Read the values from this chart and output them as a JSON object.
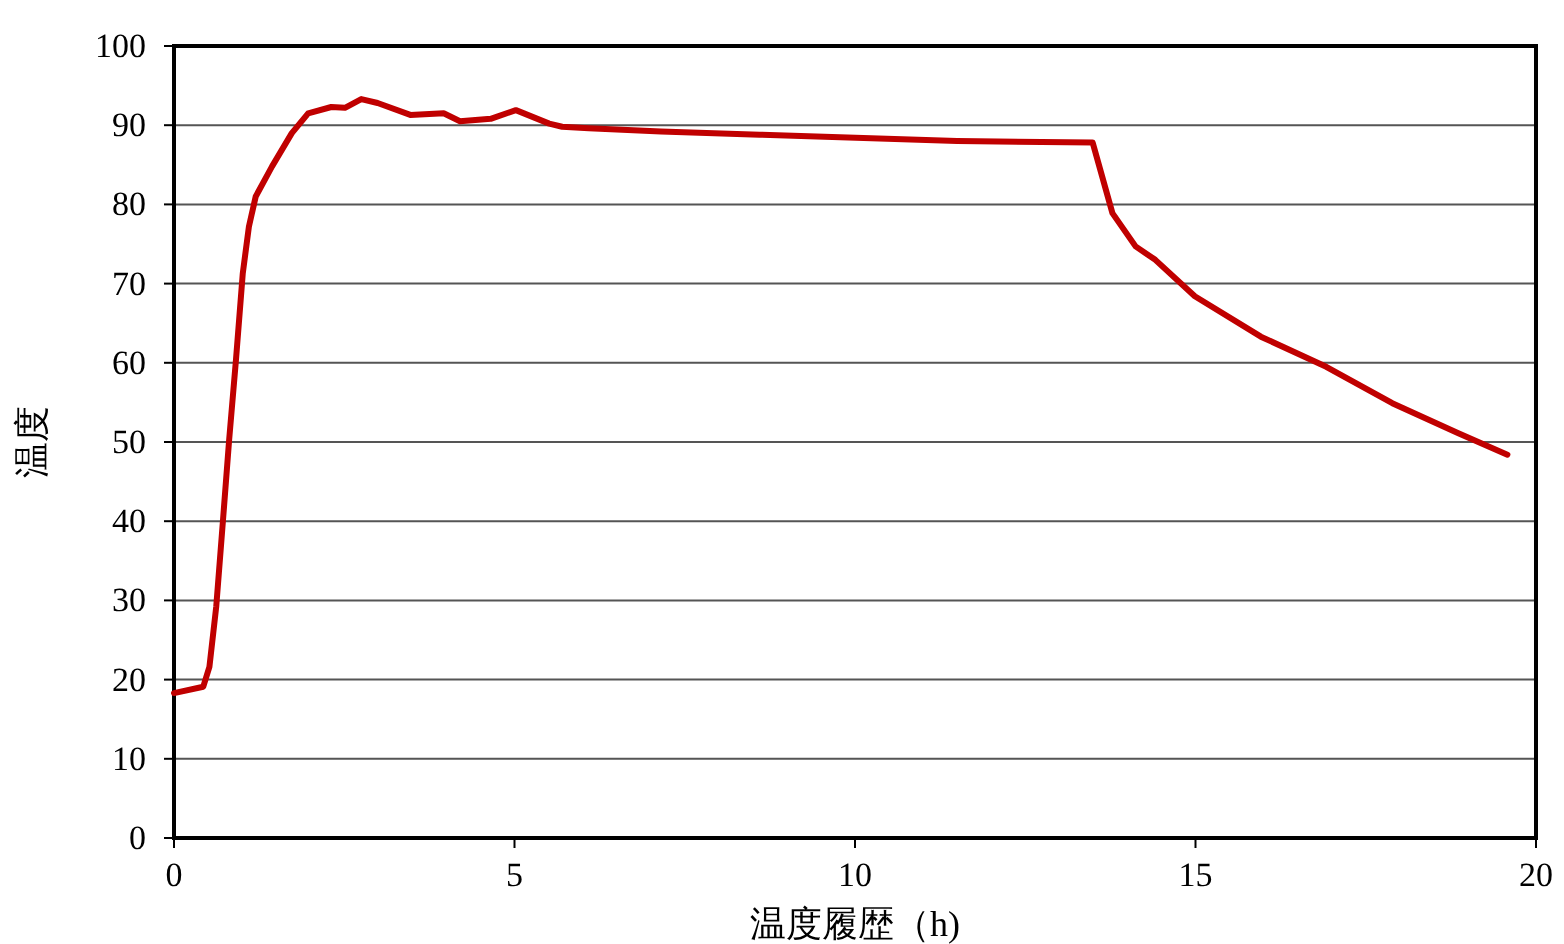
{
  "chart_data": {
    "type": "line",
    "xlabel": "温度履歴（h)",
    "ylabel": "温度",
    "xlim": [
      0,
      20
    ],
    "xticks": [
      0,
      5,
      10,
      15,
      20
    ],
    "ylim": [
      0,
      100
    ],
    "yticks": [
      0,
      10,
      20,
      30,
      40,
      50,
      60,
      70,
      80,
      90,
      100
    ],
    "grid": "y",
    "marker": "none",
    "line_style": "solid",
    "series": [
      {
        "color": "#c00000",
        "x": [
          0,
          0.43,
          0.52,
          0.62,
          0.72,
          0.81,
          0.91,
          1.01,
          1.1,
          1.2,
          1.44,
          1.73,
          1.97,
          2.31,
          2.51,
          2.75,
          2.99,
          3.47,
          3.96,
          4.2,
          4.65,
          5.02,
          5.51,
          5.7,
          6.09,
          7.15,
          8.6,
          11.5,
          13.49,
          13.78,
          14.12,
          14.41,
          14.99,
          15.96,
          16.92,
          17.89,
          18.86,
          19.58
        ],
        "values": [
          18.3,
          19.1,
          21.6,
          29.2,
          40.2,
          50.3,
          60.4,
          71.3,
          77.2,
          81,
          84.8,
          89,
          91.5,
          92.3,
          92.2,
          93.3,
          92.8,
          91.3,
          91.5,
          90.5,
          90.8,
          91.9,
          90.2,
          89.8,
          89.6,
          89.2,
          88.8,
          88,
          87.8,
          78.9,
          74.7,
          73,
          68.4,
          63.3,
          59.5,
          54.9,
          51.1,
          48.4
        ]
      }
    ]
  }
}
